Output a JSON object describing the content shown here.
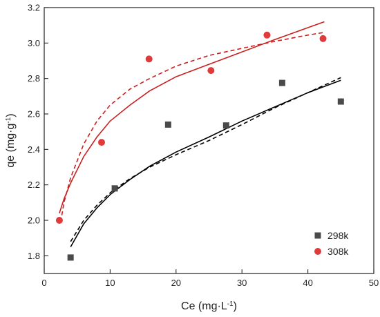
{
  "chart_data": {
    "type": "scatter",
    "title": "",
    "xlabel": {
      "main": "Ce (mg·L",
      "sup": "-1",
      "close": ")"
    },
    "ylabel": {
      "main": "qe (mg·g",
      "sup": "-1",
      "close": ")"
    },
    "xlim": [
      0,
      50
    ],
    "ylim": [
      1.7,
      3.2
    ],
    "xticks": [
      0,
      10,
      20,
      30,
      40,
      50
    ],
    "yticks": [
      1.8,
      2.0,
      2.2,
      2.4,
      2.6,
      2.8,
      3.0,
      3.2
    ],
    "grid": false,
    "legend_position": "bottom-right",
    "series": [
      {
        "name": "298k",
        "marker": "square",
        "color": "#4a4a4a",
        "fit_color": "#000000",
        "points": [
          {
            "x": 4.0,
            "y": 1.79
          },
          {
            "x": 10.7,
            "y": 2.18
          },
          {
            "x": 18.8,
            "y": 2.54
          },
          {
            "x": 27.6,
            "y": 2.535
          },
          {
            "x": 36.1,
            "y": 2.775
          },
          {
            "x": 45.0,
            "y": 2.67
          }
        ],
        "fit_solid": [
          {
            "x": 4.0,
            "y": 1.85
          },
          {
            "x": 6,
            "y": 1.98
          },
          {
            "x": 8,
            "y": 2.07
          },
          {
            "x": 10,
            "y": 2.145
          },
          {
            "x": 13,
            "y": 2.23
          },
          {
            "x": 16,
            "y": 2.305
          },
          {
            "x": 20,
            "y": 2.385
          },
          {
            "x": 25,
            "y": 2.47
          },
          {
            "x": 30,
            "y": 2.56
          },
          {
            "x": 35,
            "y": 2.64
          },
          {
            "x": 40,
            "y": 2.72
          },
          {
            "x": 45,
            "y": 2.79
          }
        ],
        "fit_dashed": [
          {
            "x": 4.0,
            "y": 1.88
          },
          {
            "x": 6,
            "y": 2.0
          },
          {
            "x": 8,
            "y": 2.085
          },
          {
            "x": 10,
            "y": 2.155
          },
          {
            "x": 13,
            "y": 2.235
          },
          {
            "x": 16,
            "y": 2.3
          },
          {
            "x": 20,
            "y": 2.37
          },
          {
            "x": 25,
            "y": 2.45
          },
          {
            "x": 30,
            "y": 2.54
          },
          {
            "x": 35,
            "y": 2.635
          },
          {
            "x": 40,
            "y": 2.72
          },
          {
            "x": 45,
            "y": 2.805
          }
        ]
      },
      {
        "name": "308k",
        "marker": "circle",
        "color": "#e03a3a",
        "fit_color": "#c8201e",
        "points": [
          {
            "x": 2.3,
            "y": 2.0
          },
          {
            "x": 8.7,
            "y": 2.44
          },
          {
            "x": 15.9,
            "y": 2.91
          },
          {
            "x": 25.3,
            "y": 2.845
          },
          {
            "x": 33.8,
            "y": 3.045
          },
          {
            "x": 42.3,
            "y": 3.025
          }
        ],
        "fit_solid": [
          {
            "x": 2.3,
            "y": 2.04
          },
          {
            "x": 3,
            "y": 2.12
          },
          {
            "x": 4,
            "y": 2.21
          },
          {
            "x": 6,
            "y": 2.36
          },
          {
            "x": 8,
            "y": 2.47
          },
          {
            "x": 10,
            "y": 2.56
          },
          {
            "x": 13,
            "y": 2.65
          },
          {
            "x": 16,
            "y": 2.73
          },
          {
            "x": 20,
            "y": 2.81
          },
          {
            "x": 25,
            "y": 2.88
          },
          {
            "x": 30,
            "y": 2.95
          },
          {
            "x": 35,
            "y": 3.02
          },
          {
            "x": 42.5,
            "y": 3.12
          }
        ],
        "fit_dashed": [
          {
            "x": 2.5,
            "y": 1.99
          },
          {
            "x": 3,
            "y": 2.1
          },
          {
            "x": 4,
            "y": 2.24
          },
          {
            "x": 6,
            "y": 2.43
          },
          {
            "x": 8,
            "y": 2.56
          },
          {
            "x": 10,
            "y": 2.65
          },
          {
            "x": 13,
            "y": 2.74
          },
          {
            "x": 16,
            "y": 2.8
          },
          {
            "x": 20,
            "y": 2.87
          },
          {
            "x": 25,
            "y": 2.93
          },
          {
            "x": 30,
            "y": 2.97
          },
          {
            "x": 35,
            "y": 3.01
          },
          {
            "x": 40,
            "y": 3.045
          },
          {
            "x": 42.5,
            "y": 3.06
          }
        ]
      }
    ]
  }
}
